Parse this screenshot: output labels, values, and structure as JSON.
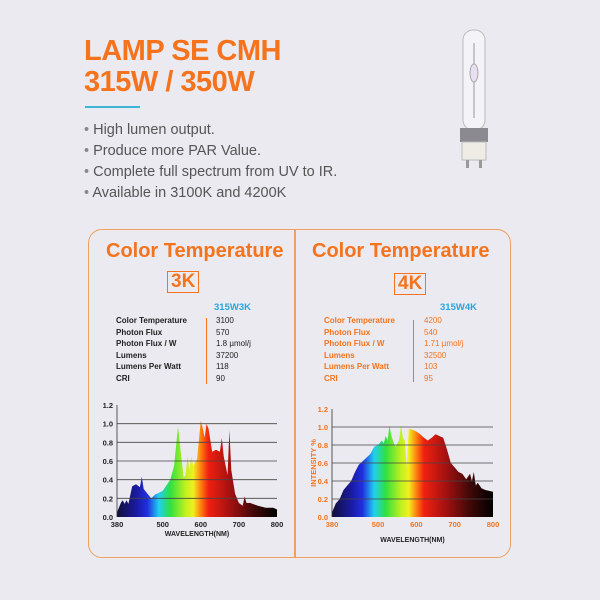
{
  "header": {
    "title_line1": "LAMP SE CMH",
    "title_line2": "315W / 350W"
  },
  "bullets": [
    "High lumen output.",
    "Produce more PAR Value.",
    "Complete full spectrum from UV to IR.",
    "Available in 3100K and 4200K"
  ],
  "colors": {
    "accent": "#f4731c",
    "model": "#2aa4e0",
    "rule": "#3db6d6"
  },
  "panels": [
    {
      "heading": "Color Temperature",
      "badge": "3K",
      "model": "315W3K",
      "labels": [
        "Color Temperature",
        "Photon Flux",
        "Photon Flux / W",
        "Lumens",
        "Lumens Per Watt",
        "CRI"
      ],
      "values": [
        "3100",
        "570",
        "1.8 µmol/j",
        "37200",
        "118",
        "90"
      ]
    },
    {
      "heading": "Color Temperature",
      "badge": "4K",
      "model": "315W4K",
      "labels": [
        "Color Temperature",
        "Photon Flux",
        "Photon Flux / W",
        "Lumens",
        "Lumens Per Watt",
        "CRI"
      ],
      "values": [
        "4200",
        "540",
        "1.71 µmol/j",
        "32500",
        "103",
        "95"
      ]
    }
  ],
  "chart_data": [
    {
      "type": "area",
      "xlabel": "WAVELENGTH(NM)",
      "ylabel": "",
      "xlim": [
        380,
        800
      ],
      "ylim": [
        0,
        1.2
      ],
      "xticks": [
        "380",
        "500",
        "600",
        "700",
        "800"
      ],
      "yticks": [
        "0.0",
        "0.2",
        "0.4",
        "0.6",
        "0.8",
        "1.0",
        "1.2"
      ],
      "grid": true,
      "x": [
        380,
        390,
        395,
        400,
        405,
        410,
        420,
        430,
        440,
        445,
        450,
        460,
        470,
        480,
        490,
        500,
        510,
        520,
        530,
        540,
        550,
        555,
        560,
        565,
        570,
        575,
        580,
        590,
        600,
        605,
        610,
        615,
        620,
        630,
        640,
        650,
        655,
        660,
        670,
        675,
        680,
        690,
        700,
        710,
        715,
        720,
        730,
        750,
        770,
        790,
        800
      ],
      "y": [
        0.05,
        0.15,
        0.18,
        0.14,
        0.18,
        0.14,
        0.33,
        0.35,
        0.32,
        0.43,
        0.3,
        0.25,
        0.2,
        0.24,
        0.26,
        0.28,
        0.34,
        0.4,
        0.55,
        0.97,
        0.6,
        0.42,
        0.45,
        0.65,
        0.5,
        0.65,
        0.55,
        0.62,
        1.03,
        0.95,
        0.85,
        1.0,
        0.95,
        0.7,
        0.72,
        0.7,
        0.85,
        0.65,
        0.45,
        0.93,
        0.5,
        0.25,
        0.15,
        0.12,
        0.22,
        0.15,
        0.15,
        0.12,
        0.1,
        0.1,
        0.08
      ]
    },
    {
      "type": "area",
      "xlabel": "WAVELENGTH(NM)",
      "ylabel": "INTENSITY %",
      "xlim": [
        380,
        800
      ],
      "ylim": [
        0,
        1.2
      ],
      "xticks": [
        "380",
        "500",
        "600",
        "700",
        "800"
      ],
      "yticks": [
        "0.0",
        "0.2",
        "0.4",
        "0.6",
        "0.8",
        "1.0",
        "1.2"
      ],
      "grid": true,
      "x": [
        380,
        390,
        400,
        410,
        420,
        430,
        440,
        450,
        460,
        470,
        480,
        490,
        500,
        510,
        515,
        520,
        525,
        530,
        535,
        545,
        555,
        560,
        565,
        570,
        575,
        580,
        590,
        600,
        610,
        620,
        630,
        640,
        650,
        660,
        670,
        680,
        690,
        700,
        710,
        720,
        730,
        740,
        745,
        750,
        755,
        760,
        770,
        780,
        800
      ],
      "y": [
        0.05,
        0.15,
        0.2,
        0.3,
        0.35,
        0.4,
        0.5,
        0.58,
        0.62,
        0.66,
        0.7,
        0.78,
        0.8,
        0.85,
        0.82,
        0.9,
        0.85,
        1.02,
        0.9,
        0.78,
        0.85,
        1.02,
        0.88,
        0.85,
        0.55,
        0.98,
        0.97,
        0.95,
        0.92,
        0.88,
        0.85,
        0.88,
        0.92,
        0.9,
        0.88,
        0.75,
        0.6,
        0.55,
        0.5,
        0.48,
        0.42,
        0.48,
        0.4,
        0.5,
        0.35,
        0.38,
        0.32,
        0.3,
        0.28
      ]
    }
  ]
}
